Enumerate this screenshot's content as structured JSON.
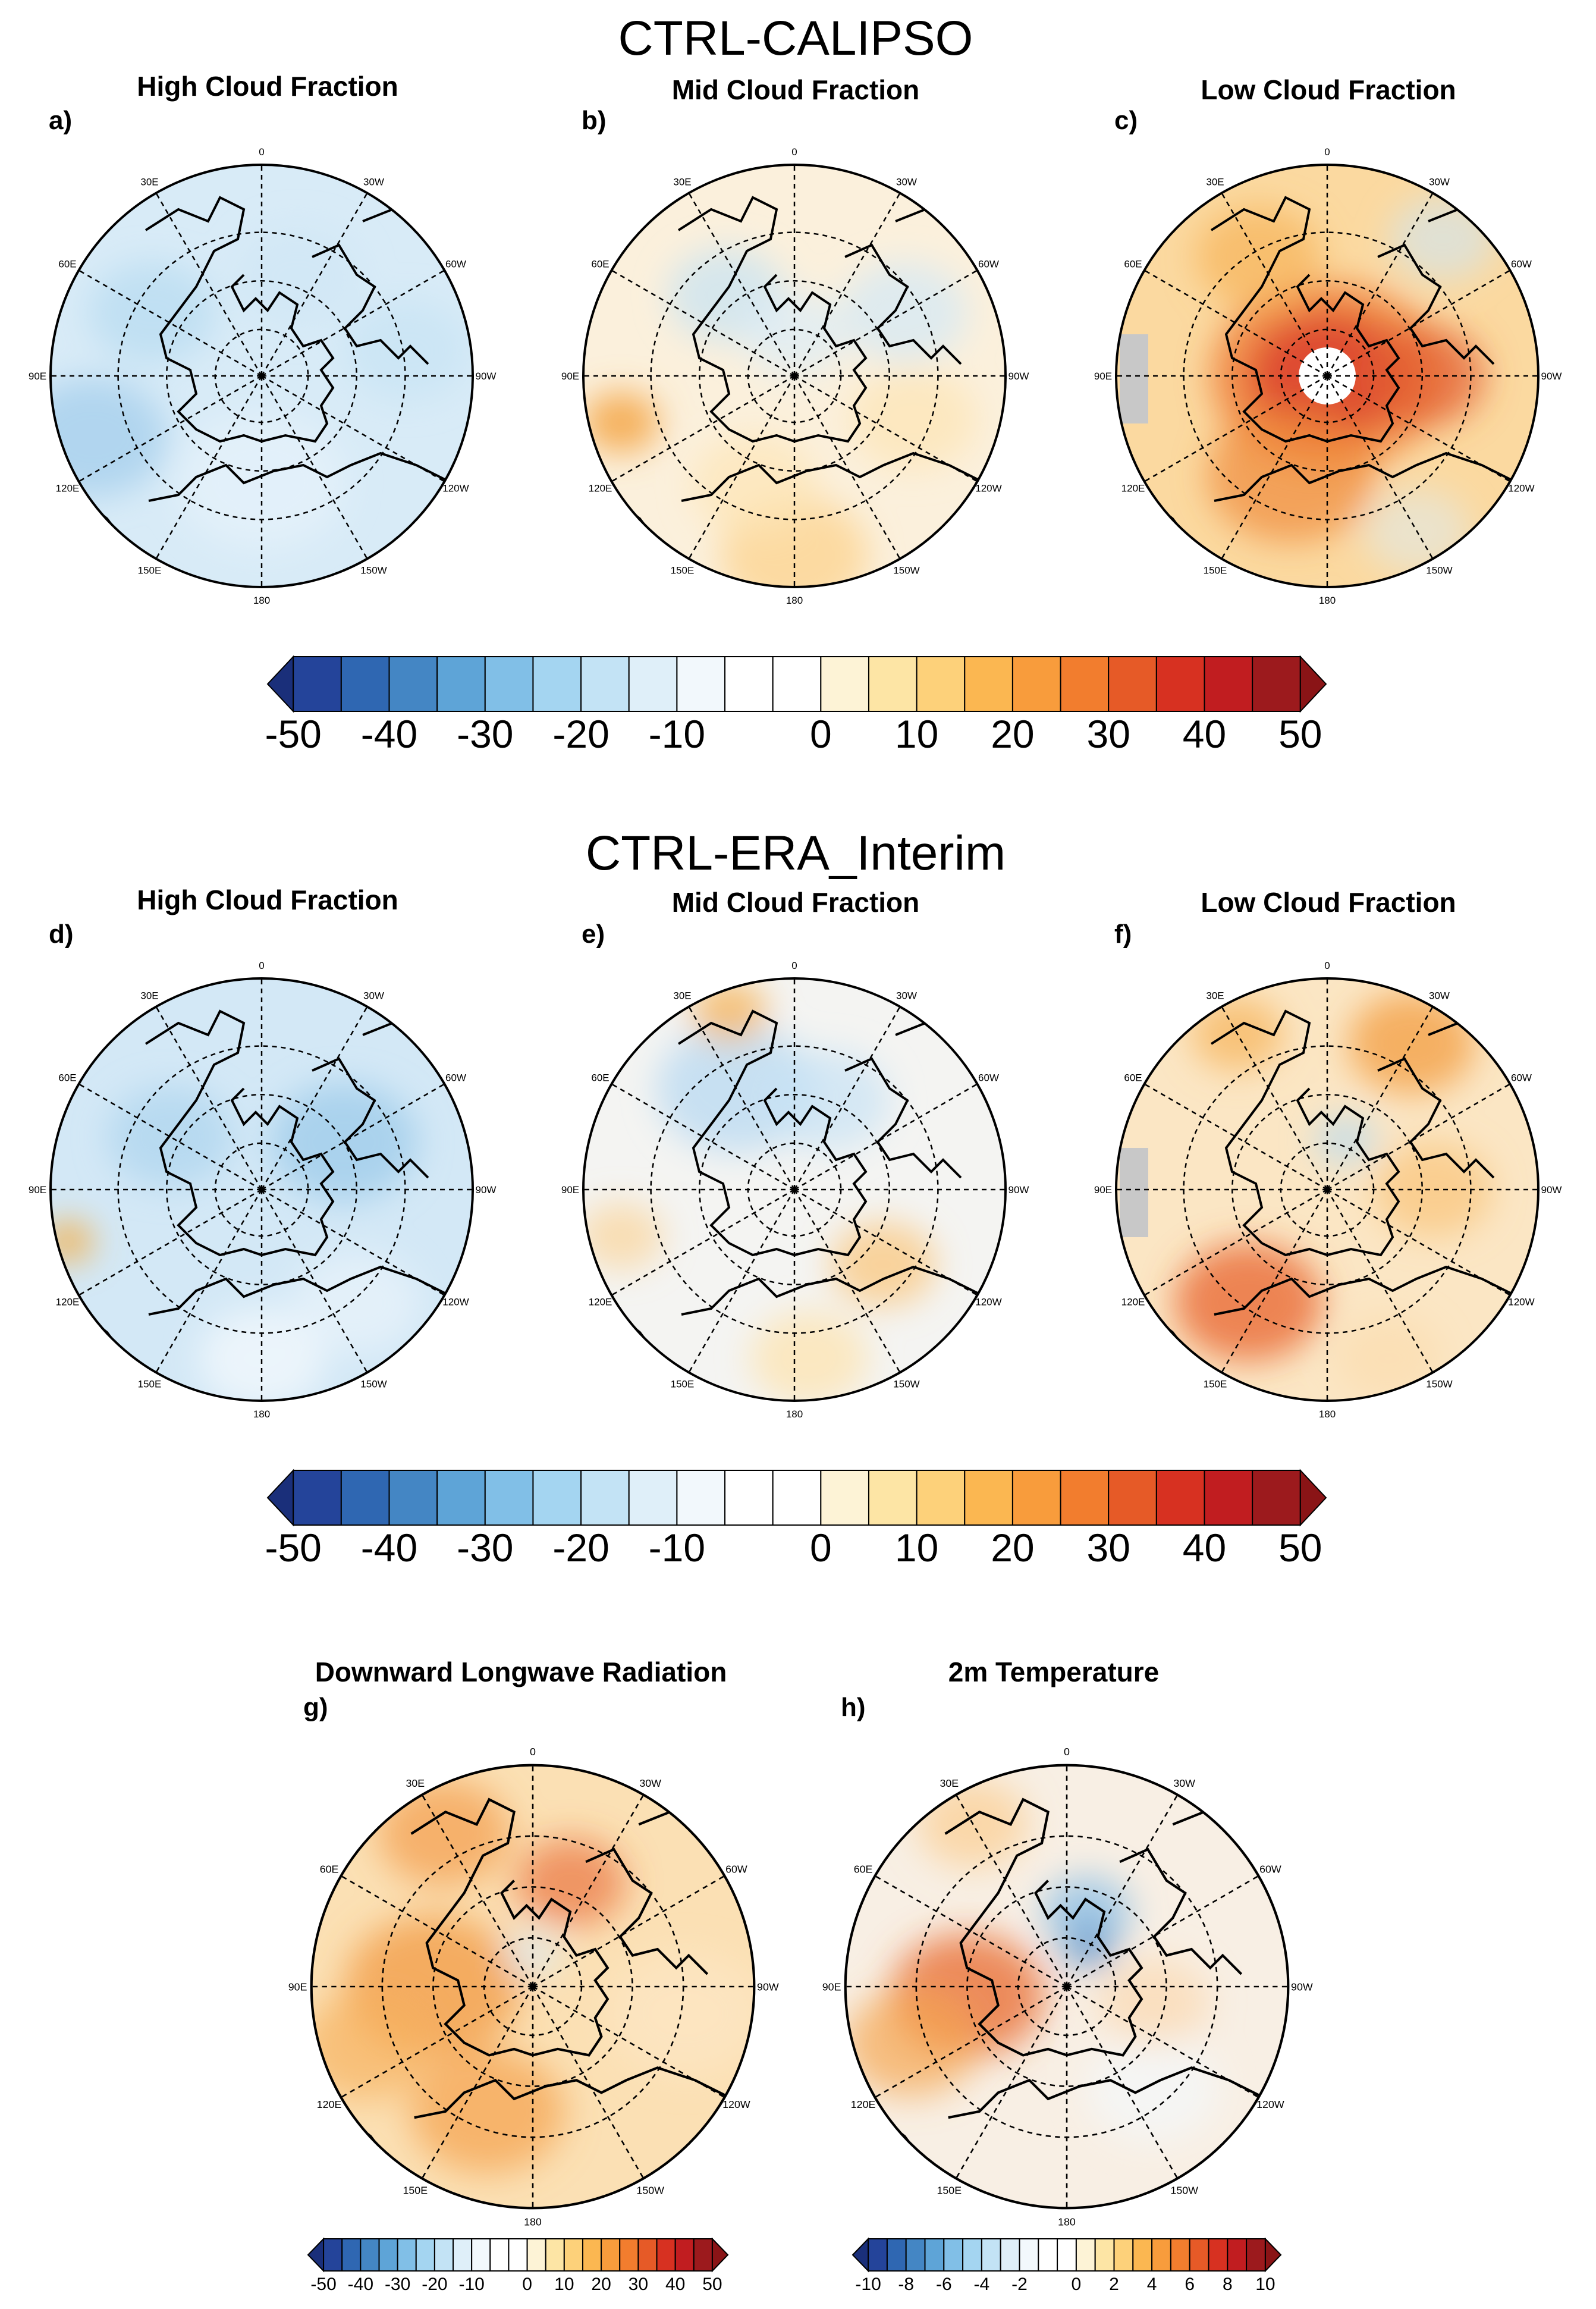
{
  "sections": [
    {
      "title": "CTRL-CALIPSO"
    },
    {
      "title": "CTRL-ERA_Interim"
    }
  ],
  "panels": [
    {
      "letter": "a)",
      "title": "High Cloud Fraction",
      "field": "high_cloud_diff_calipso"
    },
    {
      "letter": "b)",
      "title": "Mid Cloud Fraction",
      "field": "mid_cloud_diff_calipso"
    },
    {
      "letter": "c)",
      "title": "Low Cloud Fraction",
      "field": "low_cloud_diff_calipso"
    },
    {
      "letter": "d)",
      "title": "High Cloud Fraction",
      "field": "high_cloud_diff_era"
    },
    {
      "letter": "e)",
      "title": "Mid Cloud Fraction",
      "field": "mid_cloud_diff_era"
    },
    {
      "letter": "f)",
      "title": "Low Cloud Fraction",
      "field": "low_cloud_diff_era"
    },
    {
      "letter": "g)",
      "title": "Downward Longwave Radiation",
      "field": "dlw_diff"
    },
    {
      "letter": "h)",
      "title": "2m Temperature",
      "field": "t2m_diff"
    }
  ],
  "map_grid": {
    "projection": "north polar stereographic",
    "lon_labels": [
      "0",
      "30W",
      "60W",
      "90W",
      "120W",
      "150W",
      "180",
      "150E",
      "120E",
      "90E",
      "60E",
      "30E"
    ]
  },
  "colorbars": {
    "large": {
      "labels": [
        "-50",
        "-40",
        "-30",
        "-20",
        "-10",
        "0",
        "10",
        "20",
        "30",
        "40",
        "50"
      ],
      "colors": [
        "#24449a",
        "#2f67b2",
        "#4486c4",
        "#5ea4d7",
        "#81bfe7",
        "#a4d5f1",
        "#c3e3f5",
        "#dfeff9",
        "#f2f8fc",
        "#ffffff",
        "#ffffff",
        "#fdf3d6",
        "#fde5a5",
        "#fdd17a",
        "#fbb751",
        "#f89c3c",
        "#f27d2e",
        "#e65a27",
        "#d73121",
        "#c11d20",
        "#9c1a1d"
      ],
      "low_end_color": "#1a2f7a",
      "high_end_color": "#8a1416"
    },
    "small_dlw": {
      "labels": [
        "-50",
        "-40",
        "-30",
        "-20",
        "-10",
        "0",
        "10",
        "20",
        "30",
        "40",
        "50"
      ]
    },
    "small_t2m": {
      "labels": [
        "-10",
        "-8",
        "-6",
        "-4",
        "-2",
        "0",
        "2",
        "4",
        "6",
        "8",
        "10"
      ]
    }
  }
}
